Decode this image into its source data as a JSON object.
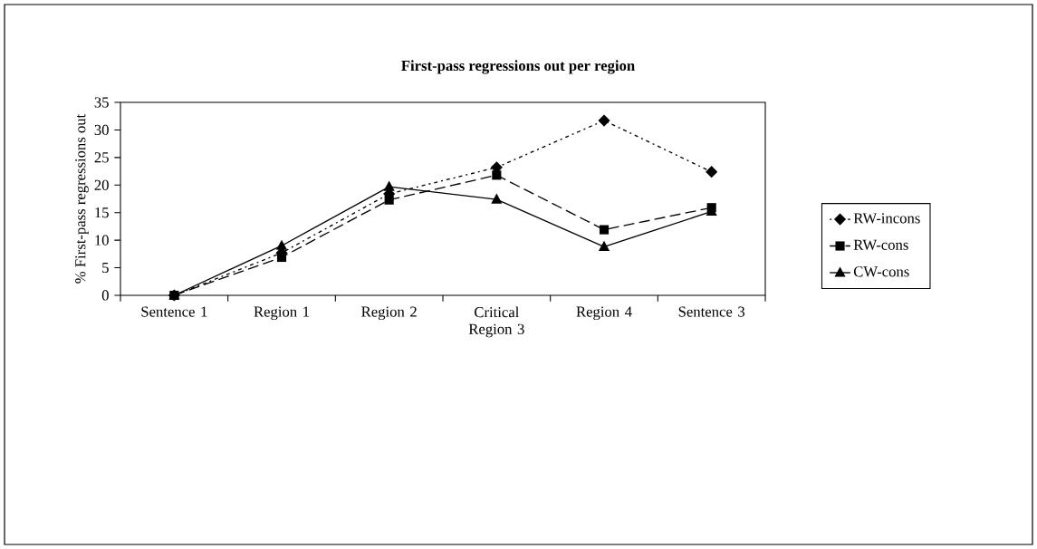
{
  "chart_data": {
    "type": "line",
    "title": "First-pass regressions out per region",
    "ylabel": "% First-pass regressions out",
    "categories": [
      "Sentence 1",
      "Region 1",
      "Region 2",
      "Critical Region 3",
      "Region 4",
      "Sentence 3"
    ],
    "series": [
      {
        "name": "RW-incons",
        "color": "#000000",
        "marker": "diamond",
        "line_style": "dotted",
        "values": [
          0,
          7.7,
          18.4,
          23.2,
          31.7,
          22.4
        ]
      },
      {
        "name": "RW-cons",
        "color": "#000000",
        "marker": "square",
        "line_style": "dashed",
        "values": [
          0,
          6.9,
          17.3,
          21.8,
          11.9,
          15.9
        ]
      },
      {
        "name": "CW-cons",
        "color": "#000000",
        "marker": "triangle",
        "line_style": "solid",
        "values": [
          0,
          9.0,
          19.7,
          17.4,
          8.8,
          15.2
        ]
      }
    ],
    "ylim": [
      0,
      35
    ],
    "yticks": [
      0,
      5,
      10,
      15,
      20,
      25,
      30,
      35
    ],
    "grid": false,
    "legend": "right"
  }
}
